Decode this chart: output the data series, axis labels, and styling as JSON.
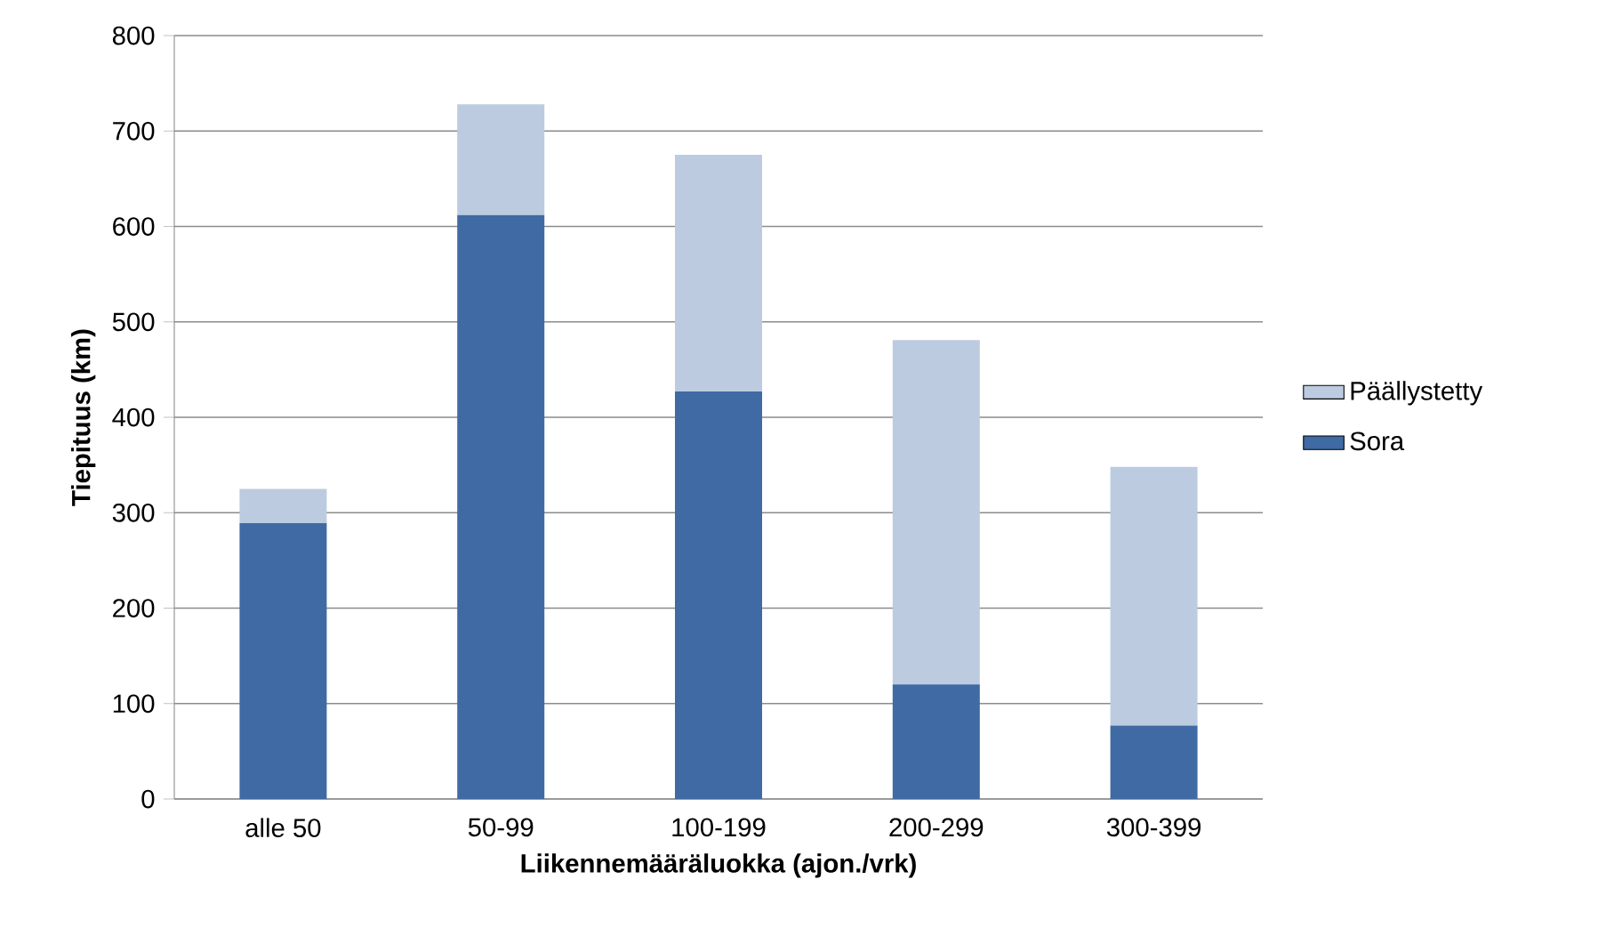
{
  "chart_data": {
    "type": "bar",
    "stacked": true,
    "xlabel": "Liikennemääräluokka (ajon./vrk)",
    "ylabel": "Tiepituus (km)",
    "categories": [
      "alle 50",
      "50-99",
      "100-199",
      "200-299",
      "300-399"
    ],
    "series": [
      {
        "name": "Sora",
        "color": "#3f6aa3",
        "values": [
          289,
          612,
          427,
          120,
          77
        ]
      },
      {
        "name": "Päällystetty",
        "color": "#bccbe0",
        "values": [
          36,
          116,
          248,
          361,
          271
        ]
      }
    ],
    "ylim": [
      0,
      800
    ],
    "yticks": [
      0,
      100,
      200,
      300,
      400,
      500,
      600,
      700,
      800
    ],
    "grid": "y",
    "legend": "right"
  }
}
